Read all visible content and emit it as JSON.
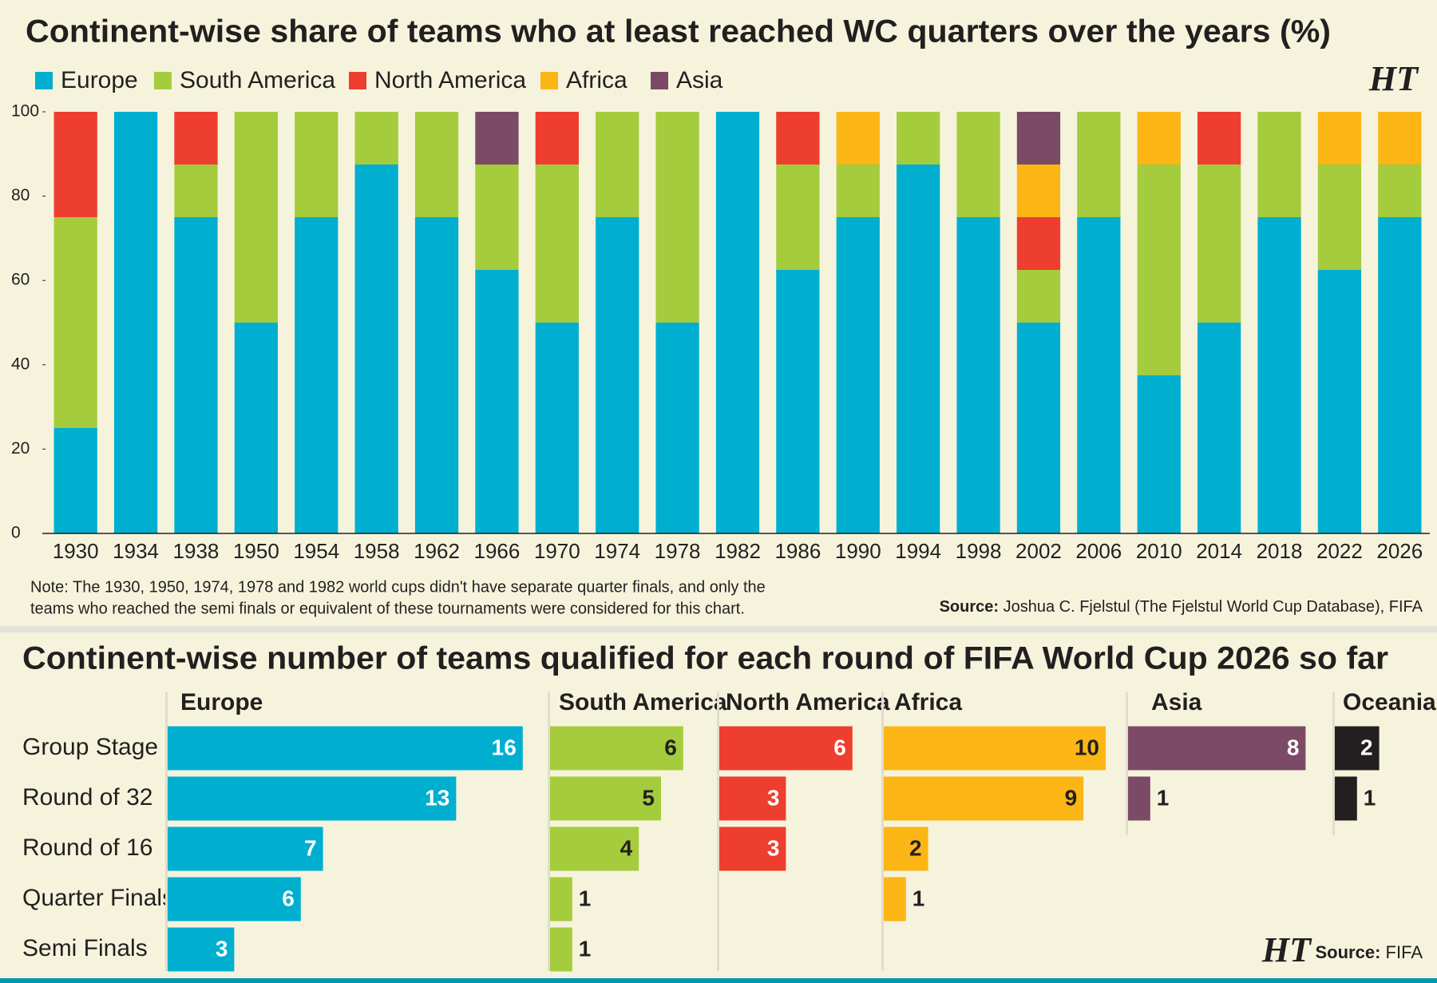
{
  "chart_data": [
    {
      "type": "bar",
      "stacked": true,
      "title": "Continent-wise share of teams who at least reached WC quarters over the years (%)",
      "categories": [
        "1930",
        "1934",
        "1938",
        "1950",
        "1954",
        "1958",
        "1962",
        "1966",
        "1970",
        "1974",
        "1978",
        "1982",
        "1986",
        "1990",
        "1994",
        "1998",
        "2002",
        "2006",
        "2010",
        "2014",
        "2018",
        "2022",
        "2026"
      ],
      "series": [
        {
          "name": "Europe",
          "color": "#00afd0",
          "values": [
            25,
            100,
            75,
            50,
            75,
            87.5,
            75,
            62.5,
            50,
            75,
            50,
            100,
            62.5,
            75,
            87.5,
            75,
            50,
            75,
            37.5,
            50,
            75,
            62.5,
            75
          ]
        },
        {
          "name": "South America",
          "color": "#a4cc3c",
          "values": [
            50,
            0,
            12.5,
            50,
            25,
            12.5,
            25,
            25,
            37.5,
            25,
            50,
            0,
            25,
            12.5,
            12.5,
            25,
            12.5,
            25,
            50,
            37.5,
            25,
            25,
            12.5
          ]
        },
        {
          "name": "North America",
          "color": "#ee3e2f",
          "values": [
            25,
            0,
            12.5,
            0,
            0,
            0,
            0,
            0,
            12.5,
            0,
            0,
            0,
            12.5,
            0,
            0,
            0,
            12.5,
            0,
            0,
            12.5,
            0,
            0,
            0
          ]
        },
        {
          "name": "Africa",
          "color": "#fbb616",
          "values": [
            0,
            0,
            0,
            0,
            0,
            0,
            0,
            0,
            0,
            0,
            0,
            0,
            0,
            12.5,
            0,
            0,
            12.5,
            0,
            12.5,
            0,
            0,
            12.5,
            12.5
          ]
        },
        {
          "name": "Asia",
          "color": "#7b4a66",
          "values": [
            0,
            0,
            0,
            0,
            0,
            0,
            0,
            12.5,
            0,
            0,
            0,
            0,
            0,
            0,
            0,
            0,
            12.5,
            0,
            0,
            0,
            0,
            0,
            0
          ]
        }
      ],
      "ylim": [
        0,
        100
      ],
      "yticks": [
        0,
        20,
        40,
        60,
        80,
        100
      ],
      "note": [
        "Note: The 1930, 1950, 1974, 1978 and 1982 world cups didn't have separate quarter finals, and only the",
        "teams who reached the semi finals or equivalent of these tournaments were considered for this chart."
      ],
      "source": {
        "label": "Source:",
        "text": "Joshua C. Fjelstul (The Fjelstul World Cup Database), FIFA"
      },
      "logo": "HT"
    },
    {
      "type": "barh",
      "title": "Continent-wise number of teams qualified for each round of FIFA World Cup 2026 so far",
      "categories": [
        "Group Stage",
        "Round of 32",
        "Round of 16",
        "Quarter Finals",
        "Semi Finals"
      ],
      "series": [
        {
          "name": "Europe",
          "color": "#00afd0",
          "values": [
            16,
            13,
            7,
            6,
            3
          ]
        },
        {
          "name": "South America",
          "color": "#a4cc3c",
          "values": [
            6,
            5,
            4,
            1,
            1
          ]
        },
        {
          "name": "North America",
          "color": "#ee3e2f",
          "values": [
            6,
            3,
            3,
            null,
            null
          ]
        },
        {
          "name": "Africa",
          "color": "#fbb616",
          "values": [
            10,
            9,
            2,
            1,
            null
          ]
        },
        {
          "name": "Asia",
          "color": "#7b4a66",
          "values": [
            8,
            1,
            null,
            null,
            null
          ]
        },
        {
          "name": "Oceania",
          "color": "#231f20",
          "values": [
            2,
            1,
            null,
            null,
            null
          ]
        }
      ],
      "source": {
        "label": "Source:",
        "text": "FIFA"
      },
      "logo": "HT"
    }
  ]
}
